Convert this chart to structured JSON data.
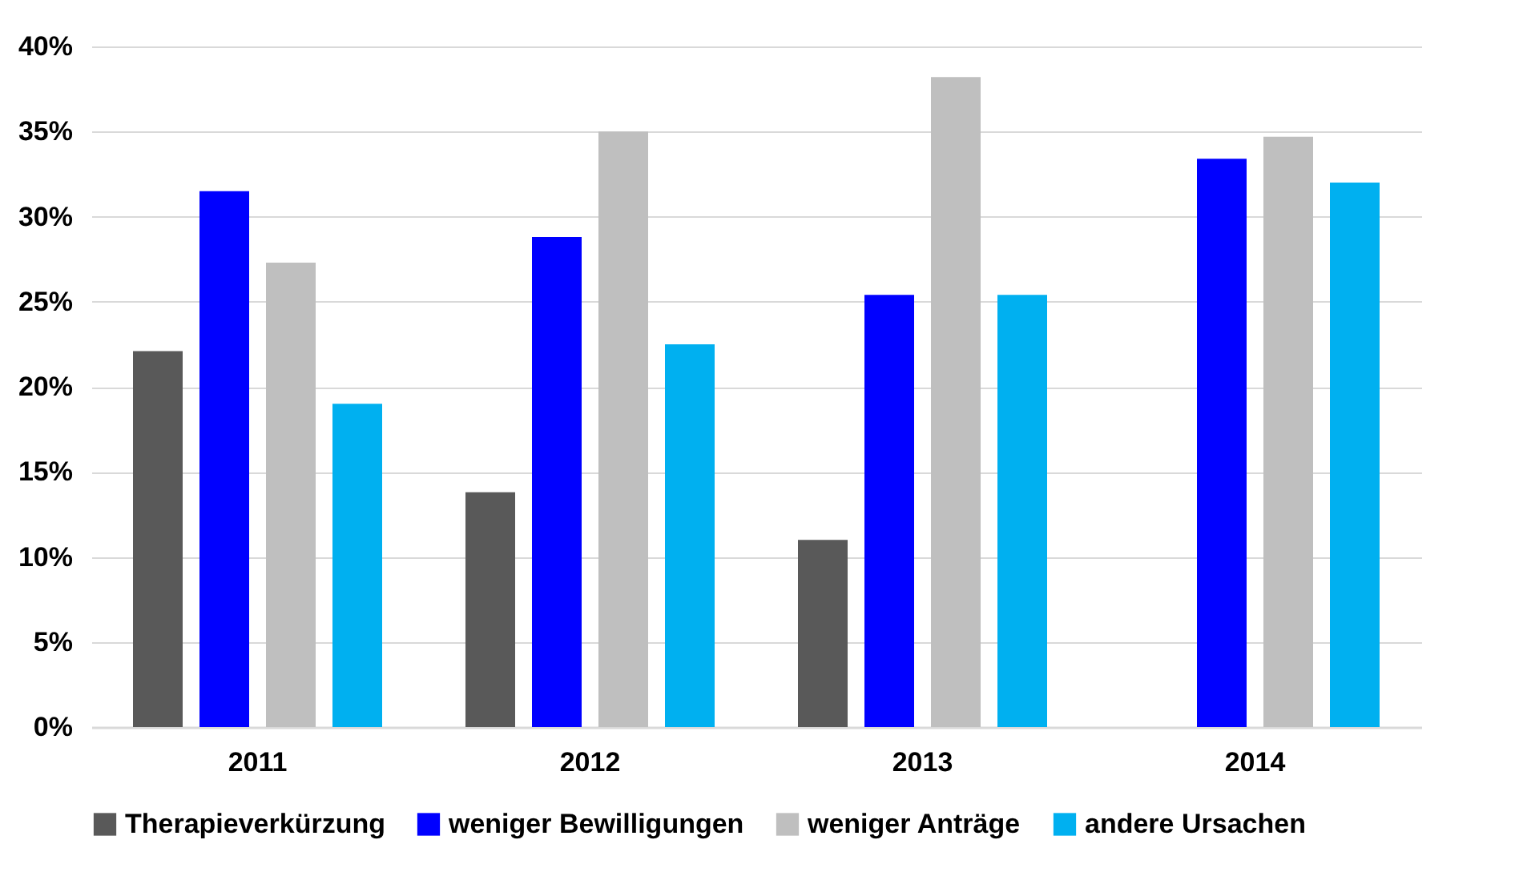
{
  "chart_data": {
    "type": "bar",
    "categories": [
      "2011",
      "2012",
      "2013",
      "2014"
    ],
    "series": [
      {
        "name": "Therapieverkürzung",
        "color": "#595959",
        "values": [
          22.1,
          13.8,
          11.0,
          null
        ]
      },
      {
        "name": "weniger Bewilligungen",
        "color": "#0000ff",
        "values": [
          31.5,
          28.8,
          25.4,
          33.4
        ]
      },
      {
        "name": "weniger Anträge",
        "color": "#bfbfbf",
        "values": [
          27.3,
          35.0,
          38.2,
          34.7
        ]
      },
      {
        "name": "andere Ursachen",
        "color": "#00b0f0",
        "values": [
          19.0,
          22.5,
          25.4,
          32.0
        ]
      }
    ],
    "ylim": [
      0,
      40
    ],
    "yticks": [
      {
        "value": 0,
        "label": "0%"
      },
      {
        "value": 5,
        "label": "5%"
      },
      {
        "value": 10,
        "label": "10%"
      },
      {
        "value": 15,
        "label": "15%"
      },
      {
        "value": 20,
        "label": "20%"
      },
      {
        "value": 25,
        "label": "25%"
      },
      {
        "value": 30,
        "label": "30%"
      },
      {
        "value": 35,
        "label": "35%"
      },
      {
        "value": 40,
        "label": "40%"
      }
    ],
    "grid": "y",
    "legend": "bottom"
  }
}
